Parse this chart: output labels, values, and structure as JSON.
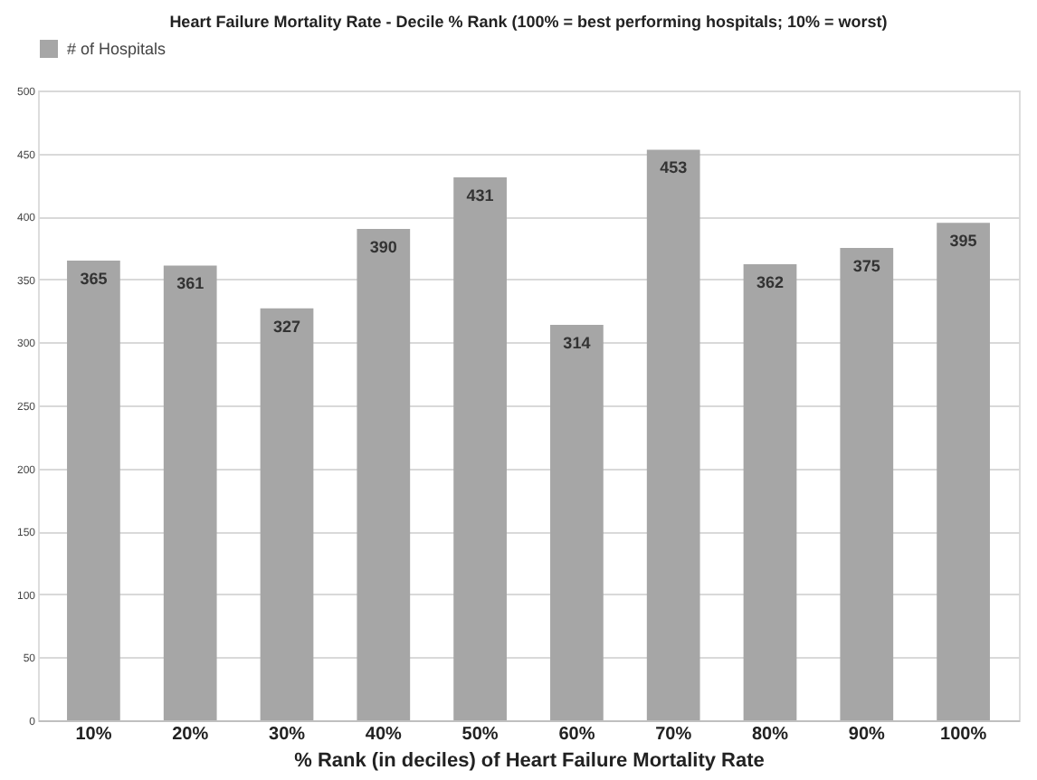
{
  "chart_data": {
    "type": "bar",
    "title": "Heart Failure Mortality Rate - Decile % Rank (100% = best performing hospitals; 10% = worst)",
    "xlabel": "% Rank (in deciles) of Heart Failure Mortality Rate",
    "categories": [
      "10%",
      "20%",
      "30%",
      "40%",
      "50%",
      "60%",
      "70%",
      "80%",
      "90%",
      "100%"
    ],
    "series": [
      {
        "name": "# of Hospitals",
        "color": "#a6a6a6",
        "values": [
          365,
          361,
          327,
          390,
          431,
          314,
          453,
          362,
          375,
          395
        ]
      }
    ],
    "ylim": [
      0,
      500
    ],
    "yticks": [
      0,
      50,
      100,
      150,
      200,
      250,
      300,
      350,
      400,
      450,
      500
    ],
    "grid": "y",
    "legend": "top",
    "data_labels": true
  }
}
